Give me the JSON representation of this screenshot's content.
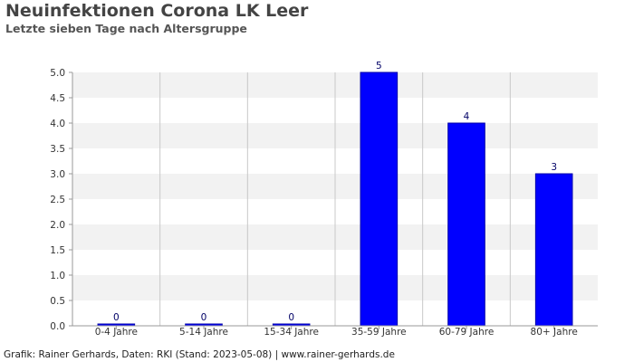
{
  "chart_data": {
    "type": "bar",
    "title": "Neuinfektionen Corona LK Leer",
    "subtitle": "Letzte sieben Tage nach Altersgruppe",
    "categories": [
      "0-4 Jahre",
      "5-14 Jahre",
      "15-34 Jahre",
      "35-59 Jahre",
      "60-79 Jahre",
      "80+ Jahre"
    ],
    "values": [
      0,
      0,
      0,
      5,
      4,
      3
    ],
    "data_labels": [
      "0",
      "0",
      "0",
      "5",
      "4",
      "3"
    ],
    "ylim": [
      0,
      5
    ],
    "yticks": [
      "0.0",
      "0.5",
      "1.0",
      "1.5",
      "2.0",
      "2.5",
      "3.0",
      "3.5",
      "4.0",
      "4.5",
      "5.0"
    ],
    "xlabel": "",
    "ylabel": "",
    "grid": true,
    "bar_color": "#0000ff",
    "bar_edge_color": "#0000aa",
    "band_color": "#f2f2f2",
    "grid_color": "#c8c8c8"
  },
  "footer": "Grafik: Rainer Gerhards, Daten: RKI (Stand: 2023-05-08) | www.rainer-gerhards.de"
}
